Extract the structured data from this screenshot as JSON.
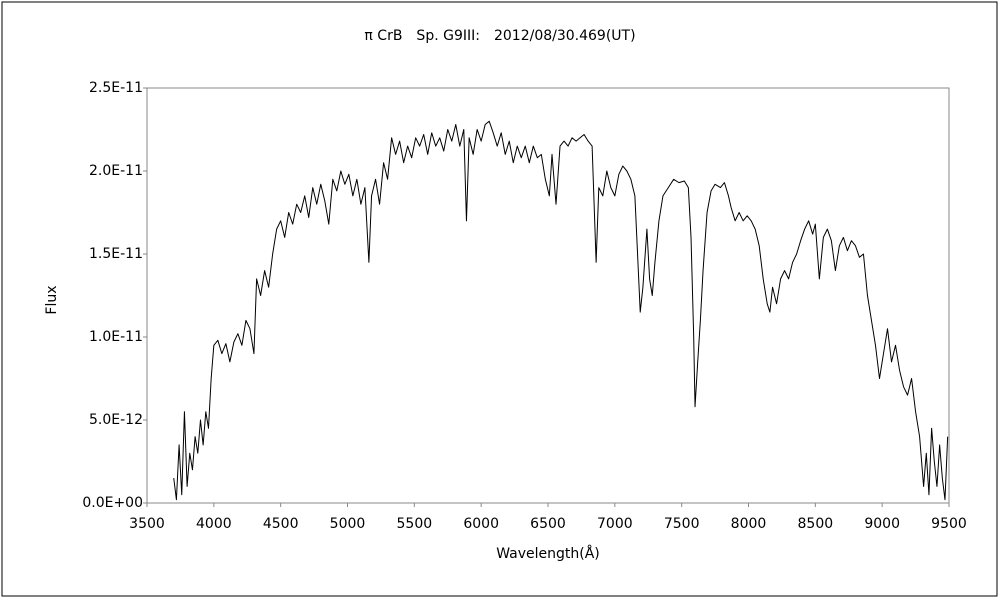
{
  "chart_data": {
    "type": "line",
    "title": "π CrB　Sp. G9III:　2012/08/30.469(UT)",
    "x_label": "Wavelength(Å)",
    "y_label": "Flux",
    "color": "#000000",
    "grid": false,
    "xlim": [
      3500,
      9500
    ],
    "xticks": [
      3500,
      4000,
      4500,
      5000,
      5500,
      6000,
      6500,
      7000,
      7500,
      8000,
      8500,
      9000,
      9500
    ],
    "ylim": [
      0,
      2.5e-11
    ],
    "yticks": [
      {
        "value": 0,
        "label": "0.0E+00"
      },
      {
        "value": 5e-12,
        "label": "5.0E-12"
      },
      {
        "value": 1e-11,
        "label": "1.0E-11"
      },
      {
        "value": 1.5e-11,
        "label": "1.5E-11"
      },
      {
        "value": 2e-11,
        "label": "2.0E-11"
      },
      {
        "value": 2.5e-11,
        "label": "2.5E-11"
      }
    ],
    "x": [
      3700,
      3720,
      3740,
      3760,
      3780,
      3800,
      3820,
      3840,
      3860,
      3880,
      3900,
      3920,
      3940,
      3960,
      3980,
      4000,
      4030,
      4060,
      4090,
      4120,
      4150,
      4180,
      4210,
      4240,
      4270,
      4300,
      4320,
      4350,
      4380,
      4410,
      4440,
      4470,
      4500,
      4530,
      4560,
      4590,
      4620,
      4650,
      4680,
      4710,
      4740,
      4770,
      4800,
      4830,
      4860,
      4890,
      4920,
      4950,
      4980,
      5010,
      5040,
      5070,
      5100,
      5130,
      5160,
      5180,
      5210,
      5240,
      5270,
      5300,
      5330,
      5360,
      5390,
      5420,
      5450,
      5480,
      5510,
      5540,
      5570,
      5600,
      5630,
      5660,
      5690,
      5720,
      5750,
      5780,
      5810,
      5840,
      5870,
      5890,
      5910,
      5940,
      5970,
      6000,
      6030,
      6060,
      6090,
      6120,
      6150,
      6180,
      6210,
      6240,
      6270,
      6300,
      6330,
      6360,
      6390,
      6420,
      6450,
      6480,
      6510,
      6530,
      6560,
      6590,
      6620,
      6650,
      6680,
      6710,
      6740,
      6770,
      6800,
      6830,
      6860,
      6880,
      6910,
      6940,
      6970,
      7000,
      7030,
      7060,
      7090,
      7120,
      7150,
      7170,
      7190,
      7210,
      7240,
      7260,
      7280,
      7300,
      7330,
      7360,
      7400,
      7440,
      7480,
      7520,
      7550,
      7570,
      7590,
      7600,
      7620,
      7640,
      7660,
      7690,
      7720,
      7750,
      7790,
      7820,
      7850,
      7870,
      7900,
      7930,
      7960,
      7990,
      8020,
      8050,
      8080,
      8110,
      8140,
      8160,
      8180,
      8210,
      8240,
      8270,
      8300,
      8330,
      8360,
      8390,
      8420,
      8450,
      8480,
      8500,
      8530,
      8560,
      8590,
      8620,
      8650,
      8680,
      8710,
      8740,
      8770,
      8800,
      8830,
      8860,
      8890,
      8920,
      8950,
      8980,
      9010,
      9040,
      9070,
      9100,
      9130,
      9160,
      9190,
      9220,
      9250,
      9280,
      9310,
      9330,
      9350,
      9370,
      9390,
      9410,
      9430,
      9450,
      9470,
      9490
    ],
    "values": [
      1.5e-12,
      2e-13,
      3.5e-12,
      5e-13,
      5.5e-12,
      1e-12,
      3e-12,
      2e-12,
      4e-12,
      3e-12,
      5e-12,
      3.5e-12,
      5.5e-12,
      4.5e-12,
      7.5e-12,
      9.5e-12,
      9.8e-12,
      9e-12,
      9.6e-12,
      8.5e-12,
      9.7e-12,
      1.02e-11,
      9.5e-12,
      1.1e-11,
      1.05e-11,
      9e-12,
      1.35e-11,
      1.25e-11,
      1.4e-11,
      1.3e-11,
      1.5e-11,
      1.65e-11,
      1.7e-11,
      1.6e-11,
      1.75e-11,
      1.68e-11,
      1.8e-11,
      1.75e-11,
      1.85e-11,
      1.72e-11,
      1.9e-11,
      1.8e-11,
      1.92e-11,
      1.82e-11,
      1.68e-11,
      1.95e-11,
      1.88e-11,
      2e-11,
      1.92e-11,
      1.98e-11,
      1.85e-11,
      1.95e-11,
      1.8e-11,
      1.9e-11,
      1.45e-11,
      1.85e-11,
      1.95e-11,
      1.8e-11,
      2.05e-11,
      1.95e-11,
      2.2e-11,
      2.1e-11,
      2.18e-11,
      2.05e-11,
      2.15e-11,
      2.08e-11,
      2.2e-11,
      2.15e-11,
      2.22e-11,
      2.1e-11,
      2.23e-11,
      2.15e-11,
      2.2e-11,
      2.12e-11,
      2.25e-11,
      2.18e-11,
      2.28e-11,
      2.15e-11,
      2.25e-11,
      1.7e-11,
      2.2e-11,
      2.1e-11,
      2.25e-11,
      2.18e-11,
      2.28e-11,
      2.3e-11,
      2.23e-11,
      2.15e-11,
      2.23e-11,
      2.1e-11,
      2.18e-11,
      2.05e-11,
      2.15e-11,
      2.08e-11,
      2.15e-11,
      2.05e-11,
      2.15e-11,
      2.08e-11,
      2.1e-11,
      1.95e-11,
      1.85e-11,
      2.1e-11,
      1.8e-11,
      2.15e-11,
      2.18e-11,
      2.15e-11,
      2.2e-11,
      2.18e-11,
      2.2e-11,
      2.22e-11,
      2.18e-11,
      2.15e-11,
      1.45e-11,
      1.9e-11,
      1.85e-11,
      2e-11,
      1.9e-11,
      1.85e-11,
      1.98e-11,
      2.03e-11,
      2e-11,
      1.95e-11,
      1.85e-11,
      1.5e-11,
      1.15e-11,
      1.3e-11,
      1.65e-11,
      1.35e-11,
      1.25e-11,
      1.45e-11,
      1.7e-11,
      1.85e-11,
      1.9e-11,
      1.95e-11,
      1.93e-11,
      1.94e-11,
      1.9e-11,
      1.6e-11,
      1e-11,
      5.8e-12,
      8.5e-12,
      1.1e-11,
      1.4e-11,
      1.75e-11,
      1.88e-11,
      1.92e-11,
      1.9e-11,
      1.93e-11,
      1.85e-11,
      1.78e-11,
      1.7e-11,
      1.75e-11,
      1.7e-11,
      1.73e-11,
      1.7e-11,
      1.65e-11,
      1.55e-11,
      1.35e-11,
      1.2e-11,
      1.15e-11,
      1.3e-11,
      1.2e-11,
      1.35e-11,
      1.4e-11,
      1.35e-11,
      1.45e-11,
      1.5e-11,
      1.58e-11,
      1.65e-11,
      1.7e-11,
      1.62e-11,
      1.68e-11,
      1.35e-11,
      1.6e-11,
      1.65e-11,
      1.58e-11,
      1.4e-11,
      1.55e-11,
      1.6e-11,
      1.52e-11,
      1.58e-11,
      1.55e-11,
      1.48e-11,
      1.5e-11,
      1.25e-11,
      1.1e-11,
      9.5e-12,
      7.5e-12,
      9e-12,
      1.05e-11,
      8.5e-12,
      9.5e-12,
      8e-12,
      7e-12,
      6.5e-12,
      7.5e-12,
      5.5e-12,
      4e-12,
      1e-12,
      3e-12,
      5e-13,
      4.5e-12,
      2.5e-12,
      1e-12,
      3.5e-12,
      1.5e-12,
      2e-13,
      4e-12
    ]
  }
}
